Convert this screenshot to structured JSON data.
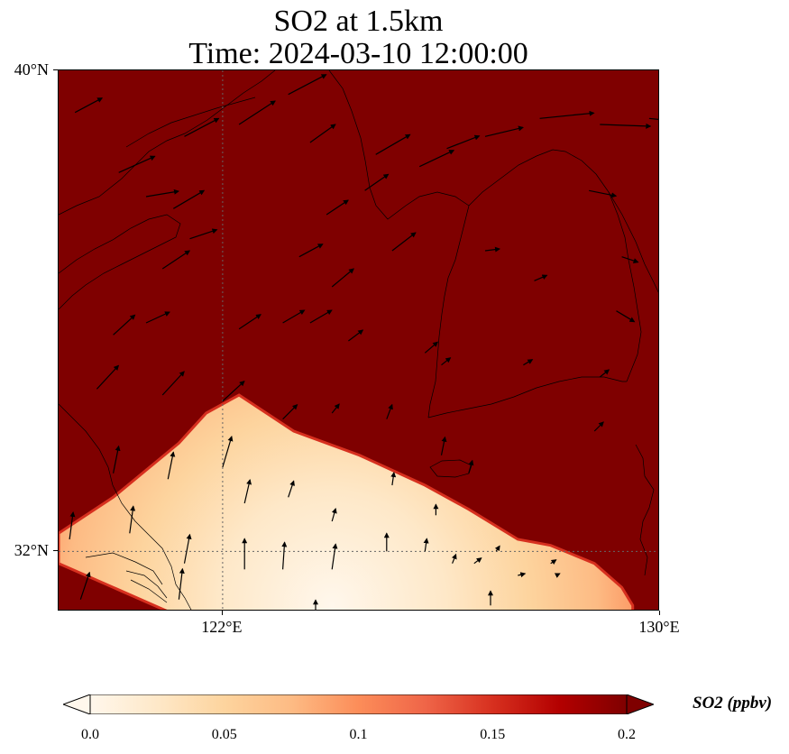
{
  "title": {
    "line1": "SO2 at 1.5km",
    "line2": "Time: 2024-03-10 12:00:00"
  },
  "map": {
    "variable": "SO2",
    "height": "1.5km",
    "time": "2024-03-10 12:00:00",
    "lon_range": [
      119.0,
      130.0
    ],
    "lat_range": [
      31.0,
      40.0
    ],
    "lat_ticks": [
      {
        "value": 40,
        "label": "40°N"
      },
      {
        "value": 32,
        "label": "32°N"
      }
    ],
    "lon_ticks": [
      {
        "value": 122,
        "label": "122°E"
      },
      {
        "value": 130,
        "label": "130°E"
      }
    ],
    "gridlines": {
      "lat": [
        32
      ],
      "lon": [
        122
      ],
      "style": "dotted"
    },
    "background_level": 0.2,
    "plume_outline": [
      [
        121.0,
        31.0
      ],
      [
        119.0,
        31.8
      ],
      [
        119.0,
        32.3
      ],
      [
        120.0,
        32.9
      ],
      [
        121.2,
        33.8
      ],
      [
        121.7,
        34.3
      ],
      [
        122.3,
        34.6
      ],
      [
        123.3,
        34.0
      ],
      [
        124.5,
        33.6
      ],
      [
        125.7,
        33.1
      ],
      [
        126.5,
        32.7
      ],
      [
        127.4,
        32.2
      ],
      [
        128.0,
        32.1
      ],
      [
        128.8,
        31.8
      ],
      [
        129.3,
        31.4
      ],
      [
        129.5,
        31.1
      ],
      [
        129.5,
        31.0
      ]
    ],
    "plume_peak": [
      124.0,
      31.1
    ],
    "wind_vectors": [
      [
        119.3,
        39.3,
        0.3,
        0.16
      ],
      [
        120.1,
        38.3,
        0.4,
        0.18
      ],
      [
        120.6,
        37.9,
        0.36,
        0.06
      ],
      [
        121.3,
        38.9,
        0.38,
        0.2
      ],
      [
        122.3,
        39.1,
        0.4,
        0.26
      ],
      [
        123.2,
        39.6,
        0.42,
        0.22
      ],
      [
        124.8,
        38.6,
        0.38,
        0.22
      ],
      [
        125.6,
        38.4,
        0.38,
        0.18
      ],
      [
        126.1,
        38.7,
        0.36,
        0.14
      ],
      [
        126.8,
        38.9,
        0.42,
        0.1
      ],
      [
        127.8,
        39.2,
        0.6,
        0.06
      ],
      [
        128.9,
        39.1,
        0.56,
        -0.02
      ],
      [
        129.8,
        39.2,
        0.56,
        -0.06
      ],
      [
        128.7,
        38.0,
        0.3,
        -0.06
      ],
      [
        123.6,
        38.8,
        0.28,
        0.2
      ],
      [
        124.6,
        38.0,
        0.26,
        0.18
      ],
      [
        123.9,
        37.6,
        0.24,
        0.16
      ],
      [
        121.4,
        37.2,
        0.3,
        0.1
      ],
      [
        120.9,
        36.7,
        0.3,
        0.2
      ],
      [
        121.1,
        37.7,
        0.34,
        0.2
      ],
      [
        123.4,
        36.9,
        0.26,
        0.14
      ],
      [
        124.0,
        36.4,
        0.24,
        0.2
      ],
      [
        125.1,
        37.0,
        0.26,
        0.2
      ],
      [
        126.8,
        37.0,
        0.16,
        0.02
      ],
      [
        127.7,
        36.5,
        0.14,
        0.06
      ],
      [
        129.3,
        36.9,
        0.18,
        -0.06
      ],
      [
        129.2,
        36.0,
        0.2,
        -0.12
      ],
      [
        120.0,
        35.6,
        0.24,
        0.22
      ],
      [
        120.6,
        35.8,
        0.26,
        0.12
      ],
      [
        122.3,
        35.7,
        0.24,
        0.16
      ],
      [
        123.1,
        35.8,
        0.24,
        0.14
      ],
      [
        123.6,
        35.8,
        0.24,
        0.14
      ],
      [
        124.3,
        35.5,
        0.16,
        0.12
      ],
      [
        125.7,
        35.3,
        0.14,
        0.12
      ],
      [
        126.0,
        35.1,
        0.1,
        0.08
      ],
      [
        127.5,
        35.1,
        0.1,
        0.06
      ],
      [
        128.9,
        34.9,
        0.1,
        0.08
      ],
      [
        119.7,
        34.7,
        0.24,
        0.26
      ],
      [
        120.9,
        34.6,
        0.24,
        0.26
      ],
      [
        122.0,
        34.5,
        0.24,
        0.22
      ],
      [
        123.1,
        34.2,
        0.16,
        0.16
      ],
      [
        124.0,
        34.3,
        0.08,
        0.1
      ],
      [
        125.0,
        34.2,
        0.06,
        0.16
      ],
      [
        126.0,
        33.6,
        0.04,
        0.2
      ],
      [
        126.5,
        33.3,
        0.04,
        0.14
      ],
      [
        128.8,
        34.0,
        0.1,
        0.1
      ],
      [
        120.0,
        33.3,
        0.06,
        0.3
      ],
      [
        121.0,
        33.2,
        0.06,
        0.3
      ],
      [
        122.0,
        33.4,
        0.1,
        0.34
      ],
      [
        122.4,
        32.8,
        0.06,
        0.26
      ],
      [
        123.2,
        32.9,
        0.06,
        0.18
      ],
      [
        124.0,
        32.5,
        0.04,
        0.14
      ],
      [
        125.1,
        33.1,
        0.02,
        0.14
      ],
      [
        125.9,
        32.6,
        0.0,
        0.12
      ],
      [
        127.0,
        32.0,
        0.04,
        0.06
      ],
      [
        128.0,
        31.8,
        0.06,
        0.04
      ],
      [
        119.2,
        32.2,
        0.04,
        0.3
      ],
      [
        120.3,
        32.3,
        0.04,
        0.3
      ],
      [
        121.3,
        31.8,
        0.06,
        0.32
      ],
      [
        122.4,
        31.7,
        0.0,
        0.34
      ],
      [
        123.1,
        31.7,
        0.02,
        0.3
      ],
      [
        124.0,
        31.7,
        0.04,
        0.28
      ],
      [
        125.0,
        32.0,
        0.0,
        0.2
      ],
      [
        125.7,
        32.0,
        0.02,
        0.14
      ],
      [
        126.2,
        31.8,
        0.04,
        0.1
      ],
      [
        126.6,
        31.8,
        0.08,
        0.06
      ],
      [
        127.4,
        31.6,
        0.08,
        0.02
      ],
      [
        128.1,
        31.6,
        0.04,
        0.02
      ],
      [
        119.4,
        31.2,
        0.1,
        0.3
      ],
      [
        121.2,
        31.2,
        0.04,
        0.34
      ],
      [
        123.7,
        30.8,
        0.0,
        0.26
      ],
      [
        126.9,
        31.1,
        0.0,
        0.16
      ]
    ]
  },
  "colorbar": {
    "label": "SO2 (ppbv)",
    "min": 0.0,
    "max": 0.2,
    "extend": "both",
    "colormap": "OrRd",
    "colors": [
      "#fff7ec",
      "#fee8c8",
      "#fdd49e",
      "#fdbb84",
      "#fc8d59",
      "#ef6548",
      "#d7301f",
      "#b30000",
      "#7f0000"
    ],
    "ticks": [
      {
        "value": 0.0,
        "label": "0.0"
      },
      {
        "value": 0.05,
        "label": "0.05"
      },
      {
        "value": 0.1,
        "label": "0.1"
      },
      {
        "value": 0.15,
        "label": "0.15"
      },
      {
        "value": 0.2,
        "label": "0.2"
      }
    ]
  }
}
